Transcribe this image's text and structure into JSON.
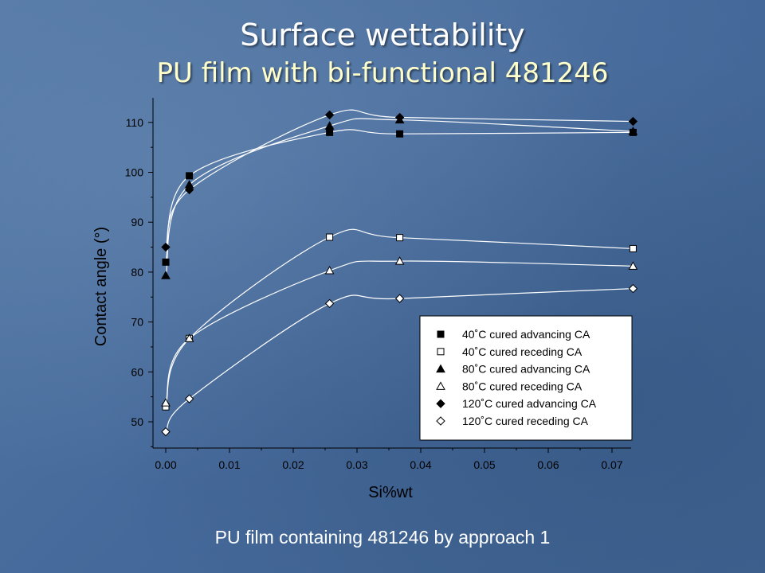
{
  "slide": {
    "title": "Surface wettability",
    "subtitle": "PU film with bi-functional 481246",
    "caption": "PU film containing 481246 by approach 1"
  },
  "chart_data": {
    "type": "scatter",
    "xlabel": "Si%wt",
    "ylabel": "Contact angle (°)",
    "xlim": [
      0.0,
      0.075
    ],
    "ylim": [
      45,
      115
    ],
    "xticks": [
      "0.00",
      "0.01",
      "0.02",
      "0.03",
      "0.04",
      "0.05",
      "0.06",
      "0.07"
    ],
    "yticks": [
      "50",
      "60",
      "70",
      "80",
      "90",
      "100",
      "110"
    ],
    "legend_position": "lower-right",
    "series": [
      {
        "name": "40˚C cured advancing CA",
        "marker": "square-filled",
        "x": [
          0,
          0.0037,
          0.0257,
          0.0367,
          0.0733
        ],
        "y": [
          82,
          99.3,
          108,
          107.7,
          108
        ]
      },
      {
        "name": "40˚C cured receding CA",
        "marker": "square-open",
        "x": [
          0,
          0.0037,
          0.0257,
          0.0367,
          0.0733
        ],
        "y": [
          53,
          66.7,
          87,
          86.9,
          84.7
        ]
      },
      {
        "name": "80˚C cured advancing CA",
        "marker": "triangle-filled",
        "x": [
          0,
          0.0037,
          0.0257,
          0.0367,
          0.0733
        ],
        "y": [
          79.3,
          97.5,
          109.3,
          110.5,
          108.2
        ]
      },
      {
        "name": "80˚C cured receding CA",
        "marker": "triangle-open",
        "x": [
          0,
          0.0037,
          0.0257,
          0.0367,
          0.0733
        ],
        "y": [
          53.8,
          66.7,
          80.3,
          82.2,
          81.2
        ]
      },
      {
        "name": "120˚C cured advancing CA",
        "marker": "diamond-filled",
        "x": [
          0,
          0.0037,
          0.0257,
          0.0367,
          0.0733
        ],
        "y": [
          85,
          96.5,
          111.5,
          111,
          110.2
        ]
      },
      {
        "name": "120˚C cured receding CA",
        "marker": "diamond-open",
        "x": [
          0,
          0.0037,
          0.0257,
          0.0367,
          0.0733
        ],
        "y": [
          48,
          54.6,
          73.7,
          74.7,
          76.7
        ]
      }
    ]
  }
}
